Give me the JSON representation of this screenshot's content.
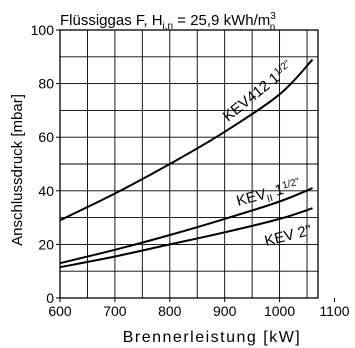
{
  "chart_data": {
    "type": "line",
    "title": {
      "main": "Flüssiggas F, H",
      "sub": "i,n",
      "value": " = 25,9 kWh/m",
      "sup": "3",
      "sub2": "n"
    },
    "xlabel": "Brennerleistung  [kW]",
    "ylabel": "Anschlussdruck [mbar]",
    "xlim": [
      600,
      1070
    ],
    "ylim": [
      0,
      100
    ],
    "x_ticks": [
      "600",
      "700",
      "800",
      "900",
      "1000",
      "1100"
    ],
    "x_tick_values": [
      600,
      700,
      800,
      900,
      1000,
      1100
    ],
    "y_ticks": [
      "0",
      "20",
      "40",
      "60",
      "80",
      "100"
    ],
    "y_tick_values": [
      0,
      20,
      40,
      60,
      80,
      100
    ],
    "grid": true,
    "series": [
      {
        "label_main": "KEV412 1",
        "label_frac": "1/2\"",
        "x": [
          600,
          700,
          800,
          900,
          1000,
          1060
        ],
        "y": [
          29,
          39,
          50,
          62,
          76,
          89
        ]
      },
      {
        "label_main": "KEV",
        "label_sub": "II",
        "label_tail": " 1",
        "label_frac": "1/2\"",
        "x": [
          600,
          700,
          800,
          900,
          1000,
          1060
        ],
        "y": [
          13,
          18,
          23.5,
          29.5,
          36,
          41
        ]
      },
      {
        "label_main": "KEV 2\"",
        "x": [
          600,
          700,
          800,
          900,
          1000,
          1060
        ],
        "y": [
          11.5,
          15.5,
          20,
          24.5,
          29.5,
          33.5
        ]
      }
    ]
  }
}
